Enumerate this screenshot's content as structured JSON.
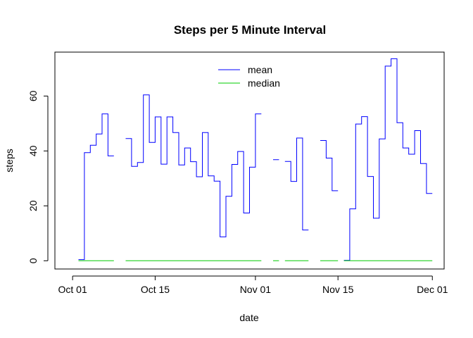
{
  "chart_data": {
    "type": "line",
    "title": "Steps per 5 Minute Interval",
    "xlabel": "date",
    "ylabel": "steps",
    "x_ticks": [
      "Oct 01",
      "Oct 15",
      "Nov 01",
      "Nov 15",
      "Dec 01"
    ],
    "y_ticks": [
      0,
      20,
      40,
      60
    ],
    "xlim": [
      "2012-09-28",
      "2012-12-03"
    ],
    "ylim": [
      -3,
      76
    ],
    "line_style": "steps",
    "grid": false,
    "legend": {
      "position": "top-center"
    },
    "series": [
      {
        "name": "mean",
        "color": "#0000ff",
        "x": [
          "2012-10-02",
          "2012-10-03",
          "2012-10-04",
          "2012-10-05",
          "2012-10-06",
          "2012-10-07",
          "2012-10-08",
          "2012-10-09",
          "2012-10-10",
          "2012-10-11",
          "2012-10-12",
          "2012-10-13",
          "2012-10-14",
          "2012-10-15",
          "2012-10-16",
          "2012-10-17",
          "2012-10-18",
          "2012-10-19",
          "2012-10-20",
          "2012-10-21",
          "2012-10-22",
          "2012-10-23",
          "2012-10-24",
          "2012-10-25",
          "2012-10-26",
          "2012-10-27",
          "2012-10-28",
          "2012-10-29",
          "2012-10-30",
          "2012-10-31",
          "2012-11-01",
          "2012-11-02",
          "2012-11-03",
          "2012-11-04",
          "2012-11-05",
          "2012-11-06",
          "2012-11-07",
          "2012-11-08",
          "2012-11-09",
          "2012-11-10",
          "2012-11-11",
          "2012-11-12",
          "2012-11-13",
          "2012-11-14",
          "2012-11-15",
          "2012-11-16",
          "2012-11-17",
          "2012-11-18",
          "2012-11-19",
          "2012-11-20",
          "2012-11-21",
          "2012-11-22",
          "2012-11-23",
          "2012-11-24",
          "2012-11-25",
          "2012-11-26",
          "2012-11-27",
          "2012-11-28",
          "2012-11-29",
          "2012-11-30"
        ],
        "values": [
          0.44,
          39.4,
          42.1,
          46.2,
          53.5,
          38.2,
          null,
          null,
          44.5,
          34.4,
          35.8,
          60.4,
          43.1,
          52.4,
          35.2,
          52.4,
          46.7,
          34.9,
          41.1,
          36.1,
          30.6,
          46.7,
          30.9,
          29.0,
          8.7,
          23.5,
          35.1,
          39.8,
          17.4,
          34.1,
          53.5,
          null,
          null,
          36.8,
          null,
          36.2,
          28.9,
          44.7,
          11.2,
          null,
          null,
          43.8,
          37.4,
          25.5,
          null,
          0.14,
          18.9,
          49.8,
          52.5,
          30.7,
          15.5,
          44.4,
          70.9,
          73.6,
          50.3,
          41.1,
          38.8,
          47.4,
          35.4,
          24.5
        ]
      },
      {
        "name": "median",
        "color": "#00cc00",
        "x": [
          "2012-10-02",
          "2012-10-03",
          "2012-10-04",
          "2012-10-05",
          "2012-10-06",
          "2012-10-07",
          "2012-10-08",
          "2012-10-09",
          "2012-10-10",
          "2012-10-11",
          "2012-10-12",
          "2012-10-13",
          "2012-10-14",
          "2012-10-15",
          "2012-10-16",
          "2012-10-17",
          "2012-10-18",
          "2012-10-19",
          "2012-10-20",
          "2012-10-21",
          "2012-10-22",
          "2012-10-23",
          "2012-10-24",
          "2012-10-25",
          "2012-10-26",
          "2012-10-27",
          "2012-10-28",
          "2012-10-29",
          "2012-10-30",
          "2012-10-31",
          "2012-11-01",
          "2012-11-02",
          "2012-11-03",
          "2012-11-04",
          "2012-11-05",
          "2012-11-06",
          "2012-11-07",
          "2012-11-08",
          "2012-11-09",
          "2012-11-10",
          "2012-11-11",
          "2012-11-12",
          "2012-11-13",
          "2012-11-14",
          "2012-11-15",
          "2012-11-16",
          "2012-11-17",
          "2012-11-18",
          "2012-11-19",
          "2012-11-20",
          "2012-11-21",
          "2012-11-22",
          "2012-11-23",
          "2012-11-24",
          "2012-11-25",
          "2012-11-26",
          "2012-11-27",
          "2012-11-28",
          "2012-11-29",
          "2012-11-30"
        ],
        "values": [
          0,
          0,
          0,
          0,
          0,
          0,
          null,
          null,
          0,
          0,
          0,
          0,
          0,
          0,
          0,
          0,
          0,
          0,
          0,
          0,
          0,
          0,
          0,
          0,
          0,
          0,
          0,
          0,
          0,
          0,
          0,
          null,
          null,
          0,
          null,
          0,
          0,
          0,
          0,
          null,
          null,
          0,
          0,
          0,
          null,
          0,
          0,
          0,
          0,
          0,
          0,
          0,
          0,
          0,
          0,
          0,
          0,
          0,
          0,
          0
        ]
      }
    ]
  }
}
